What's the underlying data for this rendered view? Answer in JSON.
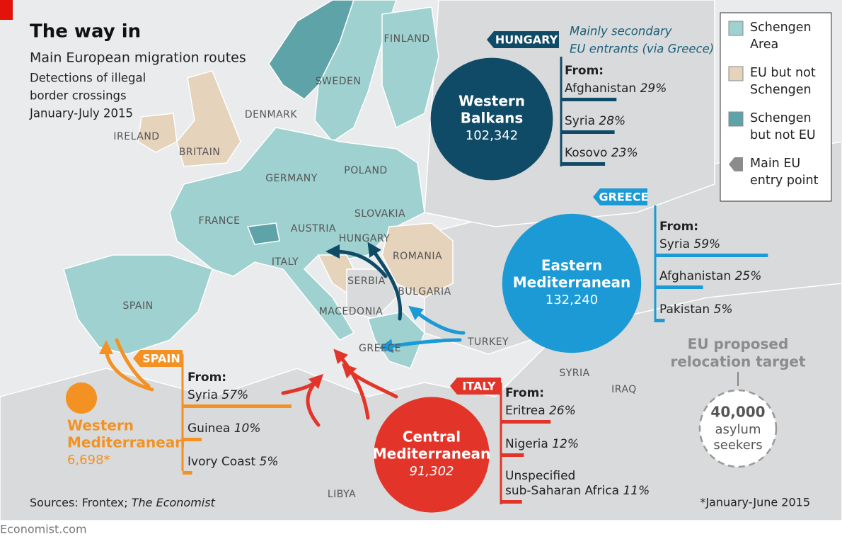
{
  "header": {
    "title": "The way in",
    "subtitle": "Main European migration routes",
    "description": [
      "Detections of illegal",
      "border crossings",
      "January-July 2015"
    ]
  },
  "legend": [
    {
      "label": [
        "Schengen",
        "Area"
      ],
      "color": "#9ed1cf"
    },
    {
      "label": [
        "EU but not",
        "Schengen"
      ],
      "color": "#e5d3bc"
    },
    {
      "label": [
        "Schengen",
        "but not EU"
      ],
      "color": "#5ea3a7"
    },
    {
      "label": [
        "Main EU",
        "entry point"
      ],
      "color": "#8c8c8c"
    }
  ],
  "countries": [
    "FINLAND",
    "SWEDEN",
    "DENMARK",
    "IRELAND",
    "BRITAIN",
    "GERMANY",
    "POLAND",
    "FRANCE",
    "SLOVAKIA",
    "AUSTRIA",
    "HUNGARY",
    "ROMANIA",
    "ITALY",
    "SERBIA",
    "BULGARIA",
    "SPAIN",
    "MACEDONIA",
    "GREECE",
    "TURKEY",
    "SYRIA",
    "IRAQ",
    "LIBYA"
  ],
  "routes": [
    {
      "name": [
        "Western",
        "Balkans"
      ],
      "value": 102342,
      "label": "102,342",
      "color": "#0f4b67",
      "entry_point": "HUNGARY",
      "note": [
        "Mainly secondary",
        "EU entrants (via Greece)"
      ],
      "from_label": "From:",
      "origins": [
        {
          "name": "Afghanistan",
          "value": 29,
          "label": "29%"
        },
        {
          "name": "Syria",
          "value": 28,
          "label": "28%"
        },
        {
          "name": "Kosovo",
          "value": 23,
          "label": "23%"
        }
      ]
    },
    {
      "name": [
        "Eastern",
        "Mediterranean"
      ],
      "value": 132240,
      "label": "132,240",
      "color": "#1b9ad6",
      "entry_point": "GREECE",
      "from_label": "From:",
      "origins": [
        {
          "name": "Syria",
          "value": 59,
          "label": "59%"
        },
        {
          "name": "Afghanistan",
          "value": 25,
          "label": "25%"
        },
        {
          "name": "Pakistan",
          "value": 5,
          "label": "5%"
        }
      ]
    },
    {
      "name": [
        "Central",
        "Mediterranean"
      ],
      "value": 91302,
      "label": "91,302",
      "color": "#e3342a",
      "entry_point": "ITALY",
      "from_label": "From:",
      "origins": [
        {
          "name": "Eritrea",
          "value": 26,
          "label": "26%"
        },
        {
          "name": "Nigeria",
          "value": 12,
          "label": "12%"
        },
        {
          "name": [
            "Unspecified",
            "sub-Saharan Africa"
          ],
          "value": 11,
          "label": "11%"
        }
      ]
    },
    {
      "name": [
        "Western",
        "Mediterranean"
      ],
      "value": 6698,
      "label": "6,698*",
      "color": "#f39223",
      "entry_point": "SPAIN",
      "from_label": "From:",
      "origins": [
        {
          "name": "Syria",
          "value": 57,
          "label": "57%"
        },
        {
          "name": "Guinea",
          "value": 10,
          "label": "10%"
        },
        {
          "name": "Ivory Coast",
          "value": 5,
          "label": "5%"
        }
      ]
    }
  ],
  "relocation": {
    "title": [
      "EU proposed",
      "relocation target"
    ],
    "value": 40000,
    "label": "40,000",
    "text": [
      "asylum",
      "seekers"
    ]
  },
  "footer": {
    "sources": "Sources: Frontex; ",
    "sources_italic": "The Economist",
    "footnote": "*January-June 2015",
    "brand": "Economist.com"
  }
}
